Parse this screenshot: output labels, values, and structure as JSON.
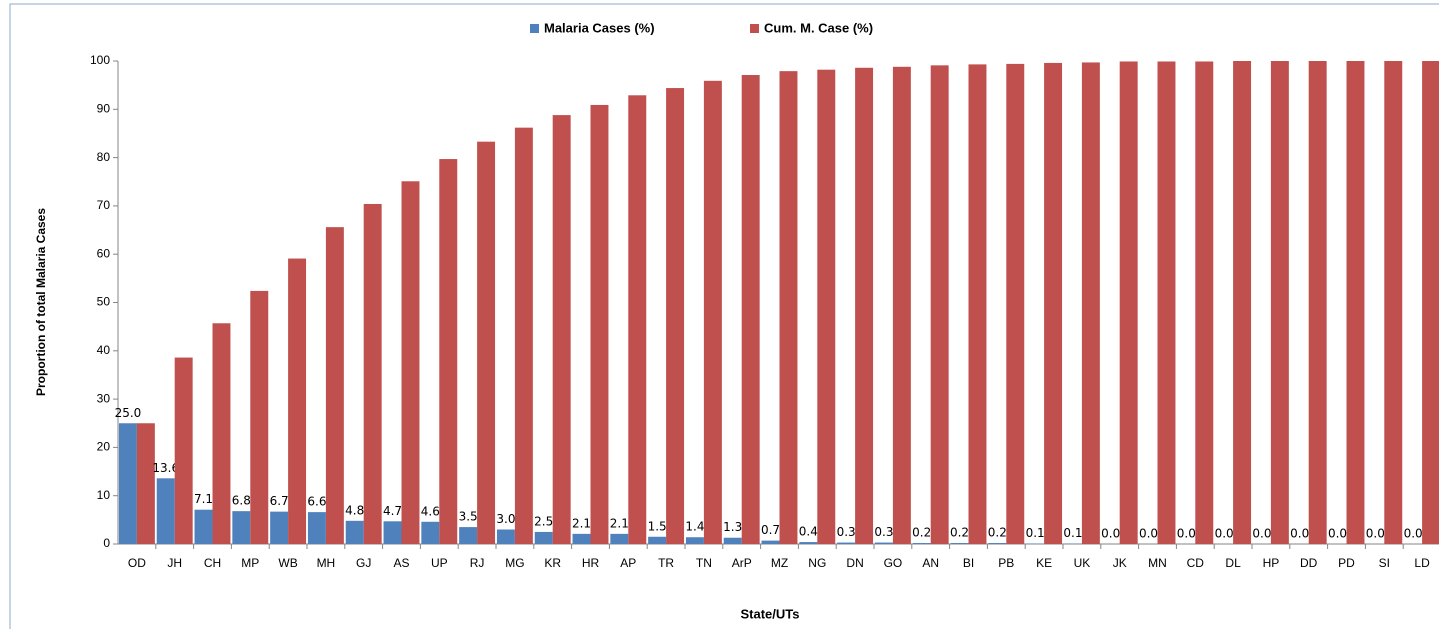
{
  "chart_data": {
    "type": "bar",
    "x_label": "State/UTs",
    "y_label": "Proportion of total Malaria Cases",
    "categories": [
      "OD",
      "JH",
      "CH",
      "MP",
      "WB",
      "MH",
      "GJ",
      "AS",
      "UP",
      "RJ",
      "MG",
      "KR",
      "HR",
      "AP",
      "TR",
      "TN",
      "ArP",
      "MZ",
      "NG",
      "DN",
      "GO",
      "AN",
      "BI",
      "PB",
      "KE",
      "UK",
      "JK",
      "MN",
      "CD",
      "DL",
      "HP",
      "DD",
      "PD",
      "SI",
      "LD"
    ],
    "series": [
      {
        "name": "Malaria Cases (%)",
        "color": "#4f81bd",
        "values": [
          25.0,
          13.6,
          7.1,
          6.8,
          6.7,
          6.6,
          4.8,
          4.7,
          4.6,
          3.5,
          3.0,
          2.5,
          2.1,
          2.1,
          1.5,
          1.4,
          1.3,
          0.7,
          0.4,
          0.3,
          0.3,
          0.2,
          0.2,
          0.2,
          0.1,
          0.1,
          0.0,
          0.0,
          0.0,
          0.0,
          0.0,
          0.0,
          0.0,
          0.0,
          0.0
        ],
        "value_labels": [
          "25.0",
          "13.6",
          "7.1",
          "6.8",
          "6.7",
          "6.6",
          "4.8",
          "4.7",
          "4.6",
          "3.5",
          "3.0",
          "2.5",
          "2.1",
          "2.1",
          "1.5",
          "1.4",
          "1.3",
          "0.7",
          "0.4",
          "0.3",
          "0.3",
          "0.2",
          "0.2",
          "0.2",
          "0.1",
          "0.1",
          "0.0",
          "0.0",
          "0.0",
          "0.0",
          "0.0",
          "0.0",
          "0.0",
          "0.0",
          "0.0"
        ]
      },
      {
        "name": "Cum. M. Case (%)",
        "color": "#c0504d",
        "values": [
          25.0,
          38.6,
          45.7,
          52.4,
          59.1,
          65.6,
          70.4,
          75.1,
          79.7,
          83.3,
          86.2,
          88.8,
          90.9,
          92.9,
          94.4,
          95.9,
          97.1,
          97.9,
          98.2,
          98.6,
          98.8,
          99.1,
          99.3,
          99.4,
          99.6,
          99.7,
          99.9,
          99.9,
          99.9,
          100,
          100,
          100,
          100,
          100,
          100
        ]
      }
    ],
    "ylim": [
      0,
      100
    ],
    "yticks": [
      0,
      10,
      20,
      30,
      40,
      50,
      60,
      70,
      80,
      90,
      100
    ],
    "grid": false
  }
}
